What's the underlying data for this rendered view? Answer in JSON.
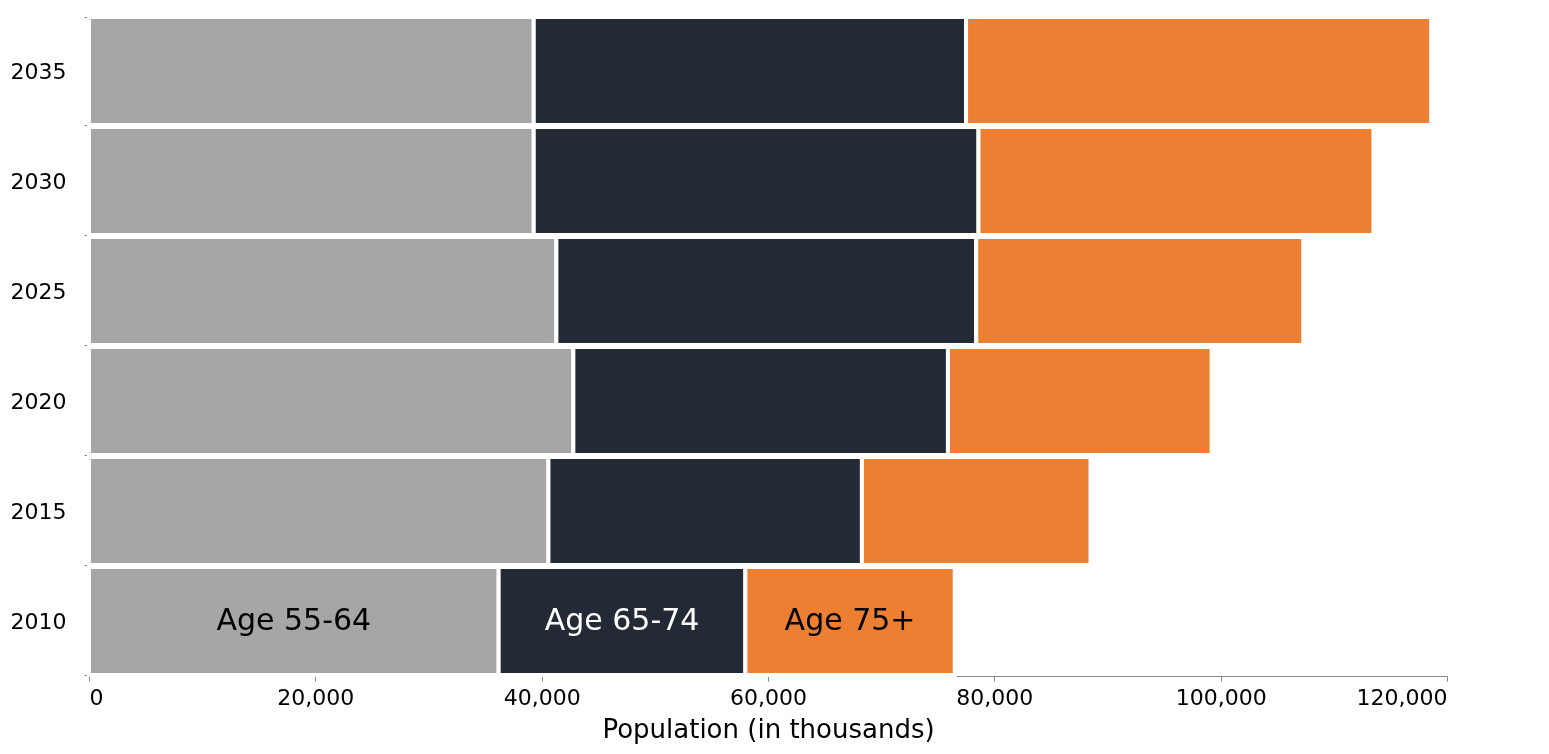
{
  "chart_data": {
    "type": "bar",
    "orientation": "horizontal",
    "stacked": true,
    "xlabel": "Population (in thousands)",
    "categories": [
      "2035",
      "2030",
      "2025",
      "2020",
      "2015",
      "2010"
    ],
    "series": [
      {
        "name": "Age 55-64",
        "color": "#a6a6a6",
        "values": [
          39300,
          39300,
          41300,
          42800,
          40600,
          36200
        ]
      },
      {
        "name": "Age 65-74",
        "color": "#232a36",
        "values": [
          38200,
          39300,
          37100,
          33100,
          27700,
          21800
        ]
      },
      {
        "name": "Age 75+",
        "color": "#ed7f33",
        "values": [
          41100,
          34900,
          28900,
          23300,
          20200,
          18500
        ]
      }
    ],
    "xlim": [
      0,
      120000
    ],
    "xticks": [
      0,
      {
        "value": 20000,
        "label": "20,000"
      },
      {
        "value": 40000,
        "label": "40,000"
      },
      {
        "value": 60000,
        "label": "60,000"
      },
      {
        "value": 80000,
        "label": "80,000"
      },
      {
        "value": 100000,
        "label": "100,000"
      },
      {
        "value": 120000,
        "label": "120,000"
      }
    ],
    "grid": false
  }
}
